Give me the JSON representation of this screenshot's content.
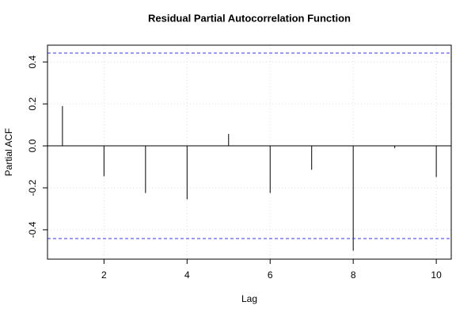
{
  "chart_data": {
    "type": "pacf",
    "title": "Residual Partial Autocorrelation Function",
    "x_label": "Lag",
    "y_label": "Partial ACF",
    "x": [
      1,
      2,
      3,
      4,
      5,
      6,
      7,
      8,
      9,
      10
    ],
    "values": [
      0.19,
      -0.145,
      -0.225,
      -0.255,
      0.057,
      -0.225,
      -0.114,
      -0.5,
      -0.011,
      -0.149
    ],
    "color": "#000000",
    "confidence_bounds": [
      0.442,
      -0.442
    ],
    "confidence_color": "#3333ff",
    "xlim": [
      0.64,
      10.36
    ],
    "ylim": [
      -0.54,
      0.48
    ],
    "xticks": [
      2,
      4,
      6,
      8,
      10
    ],
    "yticks": [
      -0.4,
      -0.2,
      {
        "value": 0,
        "label": "0.0"
      },
      0.2,
      0.4
    ],
    "grid": true
  }
}
